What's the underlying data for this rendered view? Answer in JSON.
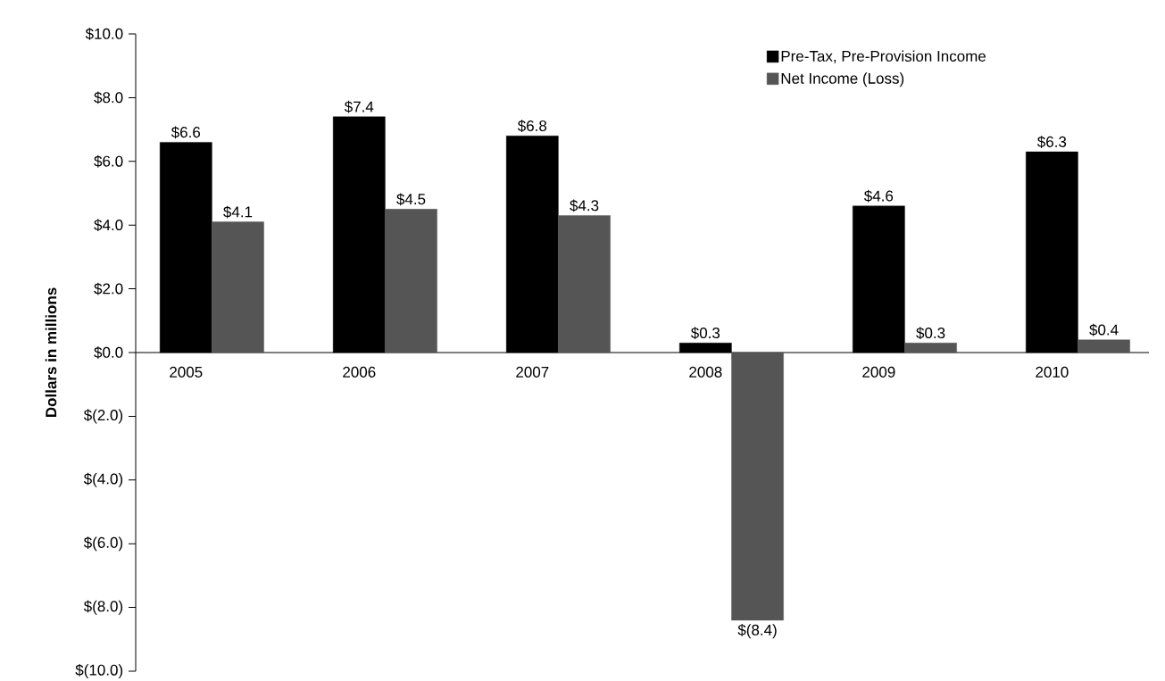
{
  "chart_data": {
    "type": "bar",
    "ylabel": "Dollars in millions",
    "categories": [
      "2005",
      "2006",
      "2007",
      "2008",
      "2009",
      "2010"
    ],
    "series": [
      {
        "name": "Pre-Tax, Pre-Provision Income",
        "color": "#000000",
        "values": [
          6.6,
          7.4,
          6.8,
          0.3,
          4.6,
          6.3
        ],
        "value_labels": [
          "$6.6",
          "$7.4",
          "$6.8",
          "$0.3",
          "$4.6",
          "$6.3"
        ]
      },
      {
        "name": "Net Income (Loss)",
        "color": "#555555",
        "values": [
          4.1,
          4.5,
          4.3,
          -8.4,
          0.3,
          0.4
        ],
        "value_labels": [
          "$4.1",
          "$4.5",
          "$4.3",
          "$(8.4)",
          "$0.3",
          "$0.4"
        ]
      }
    ],
    "ylim": [
      -10,
      10
    ],
    "yticks": [
      {
        "value": 10,
        "label": "$10.0"
      },
      {
        "value": 8,
        "label": "$8.0"
      },
      {
        "value": 6,
        "label": "$6.0"
      },
      {
        "value": 4,
        "label": "$4.0"
      },
      {
        "value": 2,
        "label": "$2.0"
      },
      {
        "value": 0,
        "label": "$0.0"
      },
      {
        "value": -2,
        "label": "$(2.0)"
      },
      {
        "value": -4,
        "label": "$(4.0)"
      },
      {
        "value": -6,
        "label": "$(6.0)"
      },
      {
        "value": -8,
        "label": "$(8.0)"
      },
      {
        "value": -10,
        "label": "$(10.0)"
      }
    ],
    "legend": "top right"
  }
}
